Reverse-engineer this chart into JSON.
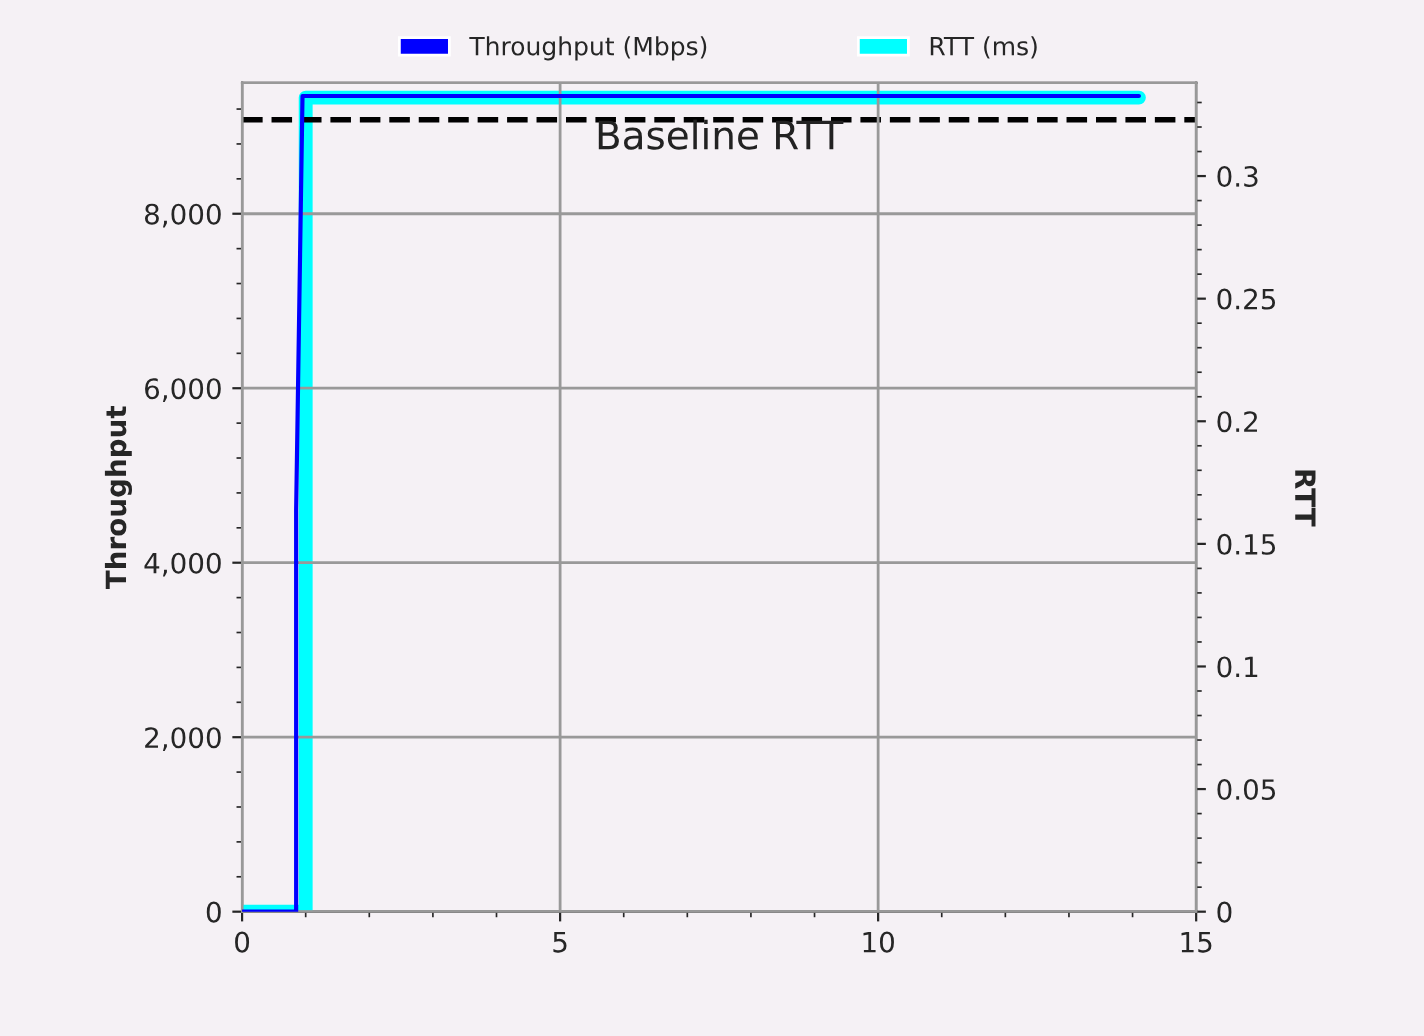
{
  "chart_data": {
    "type": "line",
    "series": [
      {
        "name": "RTT (ms)",
        "color": "#00ffff",
        "axis": "y2",
        "x": [
          0,
          1.0,
          1.0,
          14.1
        ],
        "values": [
          0,
          0,
          0.332,
          0.332
        ]
      },
      {
        "name": "Throughput (Mbps)",
        "color": "#0000ff",
        "x": [
          0,
          0.85,
          0.85,
          0.95,
          14.1
        ],
        "values": [
          0,
          0,
          4600,
          9350,
          9350
        ]
      }
    ],
    "xlim": [
      0,
      15
    ],
    "xticks": [
      0,
      5,
      10,
      15
    ],
    "ylim": [
      0,
      9500
    ],
    "yticks": [
      0,
      {
        "value": 2000,
        "label": "2,000"
      },
      {
        "value": 4000,
        "label": "4,000"
      },
      {
        "value": 6000,
        "label": "6,000"
      },
      {
        "value": 8000,
        "label": "8,000"
      }
    ],
    "y2lim": [
      0,
      0.338
    ],
    "y2ticks": [
      0,
      0.05,
      0.1,
      0.15,
      0.2,
      0.25,
      0.3
    ],
    "ylabel": "Throughput",
    "y2label": "RTT",
    "ref_lines": [
      {
        "axis": "y2",
        "value": 0.323,
        "label": "Baseline RTT",
        "color": "#000000",
        "line_style": "dashed"
      }
    ],
    "grid": true,
    "legend": "top",
    "line_style": "solid",
    "marker": "none"
  }
}
